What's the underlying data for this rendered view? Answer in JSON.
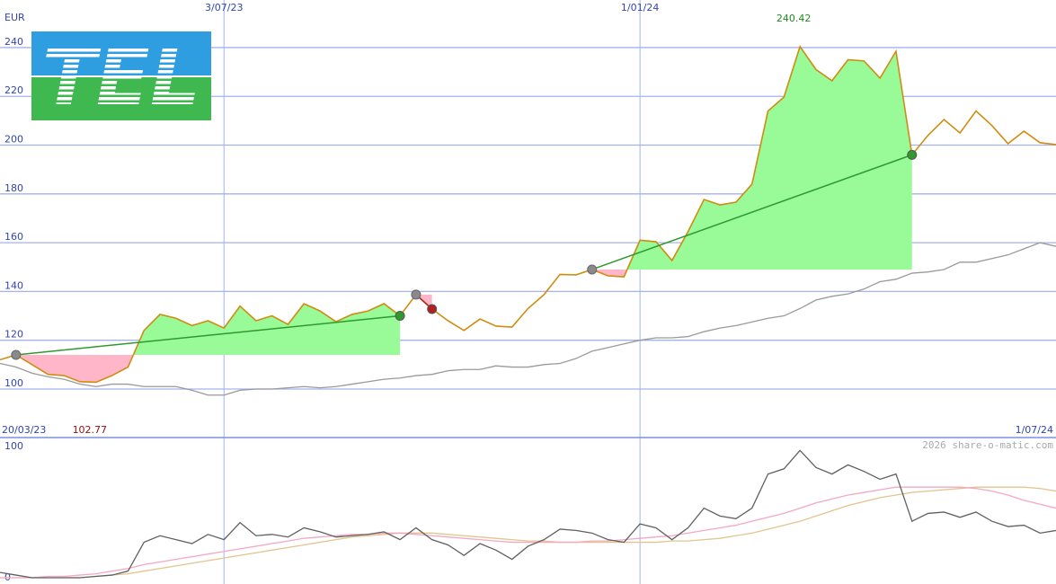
{
  "logo": "TEL",
  "chart_data": [
    {
      "type": "line",
      "y_label": "EUR",
      "categories": [
        "20/03/23",
        null,
        null,
        null,
        null,
        null,
        null,
        null,
        null,
        null,
        null,
        null,
        null,
        null,
        "3/07/23",
        null,
        null,
        null,
        null,
        null,
        null,
        null,
        null,
        null,
        null,
        null,
        null,
        null,
        null,
        null,
        null,
        null,
        null,
        null,
        null,
        null,
        null,
        null,
        null,
        null,
        "1/01/24",
        null,
        null,
        null,
        null,
        null,
        null,
        null,
        null,
        null,
        null,
        null,
        null,
        null,
        null,
        null,
        null,
        null,
        null,
        null,
        null,
        null,
        null,
        null,
        null,
        null,
        "1/07/24"
      ],
      "series": [
        {
          "color": "#d08c10",
          "values": [
            112,
            114,
            110,
            106,
            105.5,
            103,
            102.77,
            105.5,
            109,
            124,
            130.6,
            129,
            126,
            128,
            125,
            134,
            128,
            130,
            126.5,
            135,
            132,
            127.6,
            130.6,
            132,
            135,
            130,
            138.7,
            132.8,
            128,
            124,
            128.7,
            125.8,
            125.4,
            133,
            138.7,
            147,
            146.8,
            149,
            146.4,
            146,
            161,
            160.4,
            152.7,
            164.5,
            177.7,
            175.5,
            176.6,
            184,
            214,
            219.7,
            240.42,
            231,
            226.4,
            235,
            234.5,
            227.5,
            238.5,
            196,
            204,
            210.5,
            205,
            214,
            208,
            200.6,
            205.7,
            201,
            200.2
          ]
        },
        {
          "color": "#9a9a9a",
          "values": [
            110.5,
            109,
            106.5,
            105,
            104,
            102,
            101,
            102,
            102,
            101,
            101,
            101,
            99.5,
            97.5,
            97.5,
            99.5,
            100,
            100,
            100.5,
            101,
            100.5,
            101,
            102,
            103,
            104,
            104.5,
            105.5,
            106,
            107.5,
            108,
            108,
            109.5,
            109,
            109,
            110,
            110.5,
            112.5,
            115.5,
            117,
            118.5,
            120,
            121,
            121,
            121.5,
            123.5,
            125,
            126,
            127.5,
            129,
            130,
            133,
            136.5,
            138,
            139,
            141,
            144,
            145,
            147.5,
            148,
            149,
            152,
            152,
            153.5,
            155,
            157.5,
            160,
            158.5
          ]
        }
      ],
      "trades": [
        {
          "x": [
            1,
            25
          ],
          "y": [
            114,
            130
          ],
          "color": "#2e9a2e"
        },
        {
          "x": [
            26,
            27
          ],
          "y": [
            138.7,
            132.8
          ],
          "color": "#b02020"
        },
        {
          "x": [
            37,
            57
          ],
          "y": [
            149,
            196
          ],
          "color": "#2e9a2e"
        }
      ],
      "gain_fill": "#98fb98",
      "loss_fill": "#ffb6c8",
      "ylim": [
        80.1,
        259.5
      ],
      "yticks": [
        100,
        120,
        140,
        160,
        180,
        200,
        220,
        240
      ],
      "grid": true
    },
    {
      "type": "line",
      "credit": "2026 share-o-matic.com",
      "series": [
        {
          "color": "#606060",
          "values": [
            4,
            2,
            0,
            0,
            0,
            0,
            1,
            2,
            5,
            27,
            32,
            29,
            26,
            33,
            29,
            42,
            32,
            33,
            31,
            38,
            35,
            31,
            32,
            33,
            35,
            29,
            38,
            29,
            25,
            17,
            26,
            21,
            14,
            24,
            29,
            37,
            36,
            34,
            29,
            27,
            41,
            38,
            29,
            38,
            53,
            47,
            45,
            53,
            79,
            83,
            97,
            84,
            79,
            86,
            81,
            75,
            79,
            43,
            49,
            50,
            46,
            50,
            43,
            39,
            40,
            34,
            36
          ]
        },
        {
          "color": "#f4a8c4",
          "values": [
            0,
            0,
            0,
            1,
            1,
            2,
            3,
            5,
            7,
            10,
            12,
            14,
            16,
            18,
            20,
            22,
            24,
            26,
            28,
            30,
            31,
            32,
            33,
            33,
            34,
            34,
            33,
            32,
            31,
            30,
            29,
            28,
            27,
            27,
            27,
            27,
            27,
            28,
            28,
            29,
            30,
            31,
            32,
            34,
            36,
            38,
            40,
            43,
            46,
            49,
            53,
            57,
            60,
            63,
            65,
            67,
            69,
            69,
            69,
            69,
            69,
            68,
            66,
            63,
            59,
            56,
            53
          ]
        },
        {
          "color": "#e2c48e",
          "values": [
            0,
            0,
            0,
            0,
            0,
            0,
            1,
            2,
            3,
            5,
            7,
            9,
            11,
            13,
            15,
            17,
            19,
            21,
            23,
            25,
            27,
            29,
            31,
            32,
            33,
            34,
            34,
            34,
            33,
            32,
            31,
            30,
            29,
            28,
            28,
            27,
            27,
            27,
            27,
            27,
            27,
            27,
            28,
            28,
            29,
            30,
            32,
            34,
            37,
            40,
            43,
            47,
            51,
            55,
            58,
            61,
            63,
            65,
            66,
            67,
            68,
            69,
            69,
            69,
            69,
            68,
            66
          ]
        }
      ],
      "ylim": [
        -4.8,
        106.8
      ],
      "yticks": [
        0,
        100
      ],
      "grid": false
    }
  ]
}
